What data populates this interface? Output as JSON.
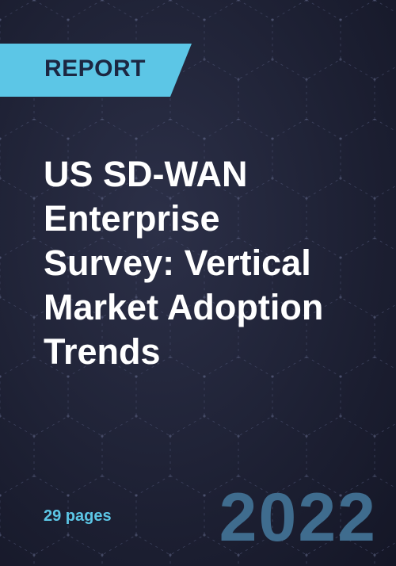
{
  "badge": "REPORT",
  "title": [
    "US SD-WAN",
    "Enterprise",
    "Survey: Vertical",
    "Market Adoption",
    "Trends"
  ],
  "pages": "29 pages",
  "year": "2022"
}
